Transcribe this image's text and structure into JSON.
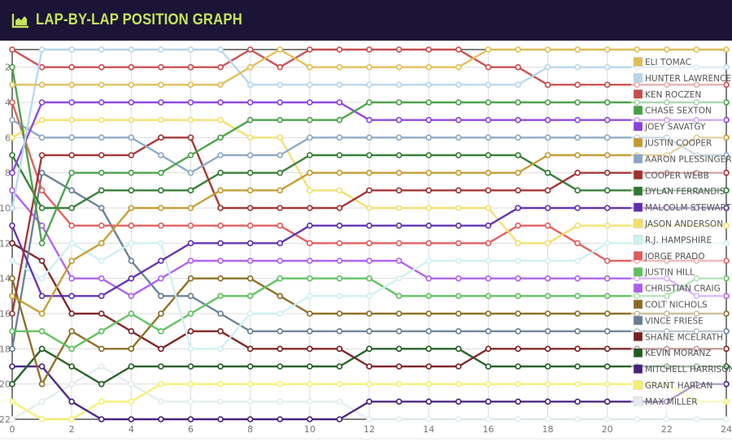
{
  "header": {
    "title": "LAP-BY-LAP POSITION GRAPH",
    "icon": "area-chart-icon",
    "accent": "#c6e35a",
    "background": "#1b1437"
  },
  "chart_data": {
    "type": "line",
    "title": "LAP-BY-LAP POSITION GRAPH",
    "xlabel": "",
    "ylabel": "",
    "x": [
      0,
      1,
      2,
      3,
      4,
      5,
      6,
      7,
      8,
      9,
      10,
      11,
      12,
      13,
      14,
      15,
      16,
      17,
      18,
      19,
      20,
      21,
      22,
      23,
      24
    ],
    "xlim": [
      0,
      24
    ],
    "ylim": [
      22,
      1
    ],
    "y_inverted": true,
    "x_ticks": [
      "0",
      "2",
      "4",
      "6",
      "8",
      "10",
      "12",
      "14",
      "16",
      "18",
      "20",
      "22",
      "24"
    ],
    "y_ticks": [
      "2",
      "4",
      "6",
      "8",
      "10",
      "12",
      "14",
      "16",
      "18",
      "20",
      "22"
    ],
    "grid": true,
    "legend": "right",
    "series": [
      {
        "name": "ELI TOMAC",
        "color": "#e2bd52",
        "values": [
          3,
          3,
          3,
          3,
          3,
          3,
          3,
          3,
          2,
          1,
          2,
          2,
          2,
          2,
          2,
          2,
          1,
          1,
          1,
          1,
          1,
          1,
          1,
          1,
          1
        ]
      },
      {
        "name": "HUNTER LAWRENCE",
        "color": "#b6d6ee",
        "values": [
          10,
          1,
          1,
          1,
          1,
          1,
          1,
          1,
          3,
          3,
          3,
          3,
          3,
          3,
          3,
          3,
          3,
          3,
          2,
          2,
          2,
          2,
          2,
          2,
          2
        ]
      },
      {
        "name": "KEN ROCZEN",
        "color": "#c84a4a",
        "values": [
          1,
          2,
          2,
          2,
          2,
          2,
          2,
          2,
          1,
          2,
          1,
          1,
          1,
          1,
          1,
          1,
          2,
          2,
          3,
          3,
          3,
          3,
          3,
          3,
          3
        ]
      },
      {
        "name": "CHASE SEXTON",
        "color": "#45a045",
        "values": [
          2,
          12,
          8,
          8,
          8,
          8,
          7,
          6,
          5,
          5,
          5,
          5,
          4,
          4,
          4,
          4,
          4,
          4,
          4,
          4,
          4,
          4,
          4,
          4,
          4
        ]
      },
      {
        "name": "JOEY SAVATGY",
        "color": "#8a3fe0",
        "values": [
          8,
          4,
          4,
          4,
          4,
          4,
          4,
          4,
          4,
          4,
          4,
          4,
          5,
          5,
          5,
          5,
          5,
          5,
          5,
          5,
          5,
          5,
          5,
          5,
          5
        ]
      },
      {
        "name": "JUSTIN COOPER",
        "color": "#c49a2e",
        "values": [
          15,
          16,
          13,
          12,
          10,
          10,
          10,
          9,
          9,
          9,
          8,
          8,
          8,
          8,
          8,
          8,
          8,
          8,
          7,
          7,
          7,
          7,
          7,
          6,
          6
        ]
      },
      {
        "name": "AARON PLESSINGER",
        "color": "#8aa6c4",
        "values": [
          5,
          6,
          6,
          6,
          6,
          7,
          8,
          7,
          7,
          7,
          6,
          6,
          6,
          6,
          6,
          6,
          6,
          6,
          6,
          6,
          6,
          6,
          6,
          7,
          7
        ]
      },
      {
        "name": "COOPER WEBB",
        "color": "#a02e2e",
        "values": [
          16,
          7,
          7,
          7,
          7,
          6,
          6,
          10,
          10,
          10,
          10,
          10,
          9,
          9,
          9,
          9,
          9,
          9,
          9,
          8,
          8,
          8,
          8,
          8,
          8
        ]
      },
      {
        "name": "DYLAN FERRANDIS",
        "color": "#2e7a30",
        "values": [
          7,
          10,
          10,
          9,
          9,
          9,
          9,
          8,
          8,
          8,
          7,
          7,
          7,
          7,
          7,
          7,
          7,
          7,
          8,
          9,
          9,
          9,
          9,
          9,
          9
        ]
      },
      {
        "name": "MALCOLM STEWART",
        "color": "#5e2cb0",
        "values": [
          11,
          15,
          15,
          15,
          14,
          13,
          12,
          12,
          12,
          12,
          11,
          11,
          11,
          11,
          11,
          11,
          11,
          10,
          10,
          10,
          10,
          10,
          10,
          10,
          10
        ]
      },
      {
        "name": "JASON ANDERSON",
        "color": "#f2df6a",
        "values": [
          6,
          5,
          5,
          5,
          5,
          5,
          5,
          5,
          6,
          6,
          9,
          9,
          10,
          10,
          10,
          10,
          10,
          12,
          12,
          11,
          11,
          11,
          11,
          11,
          11
        ]
      },
      {
        "name": "R.J. HAMPSHIRE",
        "color": "#cdf0f2",
        "values": [
          13,
          14,
          12,
          13,
          12,
          12,
          18,
          18,
          16,
          16,
          15,
          15,
          15,
          14,
          13,
          13,
          13,
          13,
          13,
          13,
          12,
          12,
          12,
          12,
          12
        ]
      },
      {
        "name": "JORGE PRADO",
        "color": "#e05a5a",
        "values": [
          4,
          9,
          11,
          11,
          11,
          11,
          11,
          11,
          11,
          11,
          12,
          12,
          12,
          12,
          12,
          12,
          12,
          11,
          11,
          12,
          13,
          13,
          13,
          13,
          13
        ]
      },
      {
        "name": "JUSTIN HILL",
        "color": "#5cc05c",
        "values": [
          17,
          17,
          18,
          17,
          16,
          17,
          16,
          15,
          15,
          14,
          14,
          14,
          14,
          15,
          15,
          15,
          15,
          15,
          15,
          15,
          15,
          15,
          15,
          14,
          14
        ]
      },
      {
        "name": "CHRISTIAN CRAIG",
        "color": "#ad5cf0",
        "values": [
          9,
          11,
          14,
          14,
          15,
          14,
          13,
          13,
          13,
          13,
          13,
          13,
          13,
          13,
          14,
          14,
          14,
          14,
          14,
          14,
          14,
          14,
          14,
          15,
          15
        ]
      },
      {
        "name": "COLT NICHOLS",
        "color": "#8a6a1e",
        "values": [
          14,
          20,
          17,
          18,
          18,
          16,
          14,
          14,
          14,
          15,
          16,
          16,
          16,
          16,
          16,
          16,
          16,
          16,
          16,
          16,
          16,
          16,
          16,
          16,
          16
        ]
      },
      {
        "name": "VINCE FRIESE",
        "color": "#667d92",
        "values": [
          18,
          8,
          9,
          10,
          13,
          15,
          15,
          16,
          17,
          17,
          17,
          17,
          17,
          17,
          17,
          17,
          17,
          17,
          17,
          17,
          17,
          17,
          17,
          17,
          17
        ]
      },
      {
        "name": "SHANE MCELRATH",
        "color": "#7a1f1f",
        "values": [
          12,
          13,
          16,
          16,
          17,
          18,
          17,
          17,
          18,
          18,
          18,
          18,
          19,
          19,
          19,
          19,
          18,
          18,
          18,
          18,
          18,
          18,
          18,
          18,
          18
        ]
      },
      {
        "name": "KEVIN MORANZ",
        "color": "#1f5c20",
        "values": [
          20,
          18,
          19,
          20,
          19,
          19,
          19,
          19,
          19,
          19,
          19,
          19,
          18,
          18,
          18,
          18,
          19,
          19,
          19,
          19,
          19,
          19,
          19,
          19,
          19
        ]
      },
      {
        "name": "MITCHELL HARRISON",
        "color": "#45207e",
        "values": [
          19,
          19,
          21,
          22,
          22,
          22,
          22,
          22,
          22,
          22,
          22,
          22,
          21,
          21,
          21,
          21,
          21,
          21,
          21,
          21,
          21,
          21,
          21,
          20,
          20
        ]
      },
      {
        "name": "GRANT HARLAN",
        "color": "#f4f070",
        "values": [
          21,
          22,
          22,
          21,
          21,
          20,
          20,
          20,
          20,
          20,
          20,
          20,
          20,
          20,
          20,
          20,
          20,
          20,
          20,
          20,
          20,
          20,
          20,
          21,
          21
        ]
      },
      {
        "name": "MAX MILLER",
        "color": "#e4ecee",
        "values": [
          22,
          21,
          20,
          19,
          20,
          21,
          21,
          21,
          21,
          21,
          21,
          21,
          22,
          22,
          22,
          22,
          22,
          22,
          22,
          22,
          22,
          22,
          22,
          22,
          22
        ]
      }
    ]
  }
}
